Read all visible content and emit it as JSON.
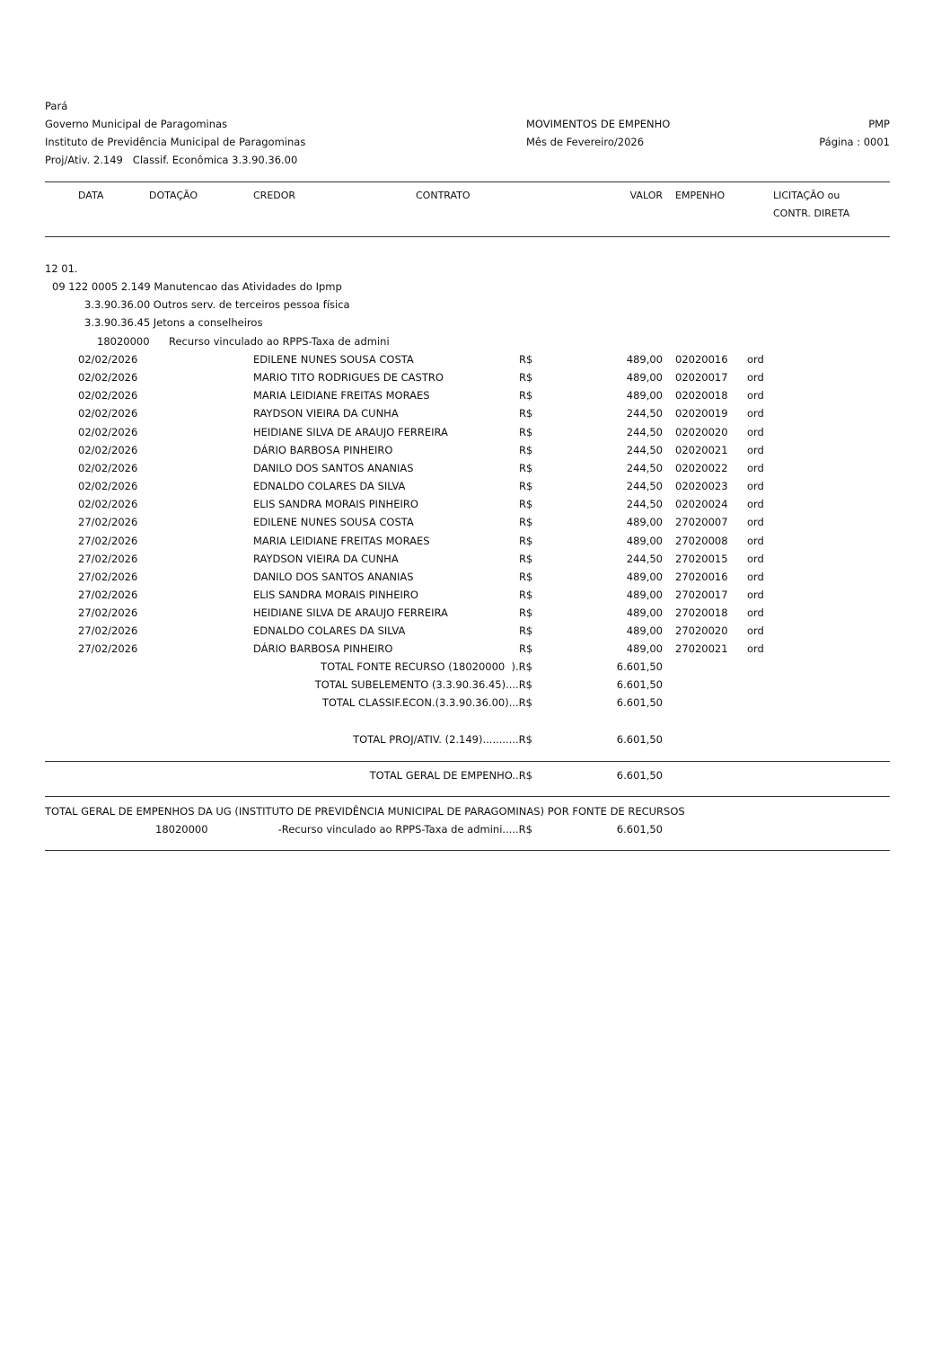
{
  "header": {
    "state": "Pará",
    "government": "Governo Municipal de Paragominas",
    "institute": "Instituto de Previdência Municipal de Paragominas",
    "proj_line": "Proj/Ativ. 2.149   Classif. Econômica 3.3.90.36.00",
    "report_title": "MOVIMENTOS DE EMPENHO",
    "month": "Mês de Fevereiro/2026",
    "org_code": "PMP",
    "page": "Página : 0001"
  },
  "columns": {
    "data": "DATA",
    "dotacao": "DOTAÇÃO",
    "credor": "CREDOR",
    "contrato": "CONTRATO",
    "valor": "VALOR",
    "empenho": "EMPENHO",
    "licitacao1": "LICITAÇÃO ou",
    "licitacao2": "CONTR. DIRETA"
  },
  "hierarchy": {
    "unit": "12 01.",
    "program": "09 122 0005 2.149 Manutencao das Atividades do Ipmp",
    "element": "3.3.90.36.00 Outros serv. de terceiros pessoa física",
    "subelement": "3.3.90.36.45 Jetons a conselheiros",
    "source_code": "18020000",
    "source_name": "Recurso vinculado ao RPPS-Taxa de admini"
  },
  "rows": [
    {
      "date": "02/02/2026",
      "credor": "EDILENE NUNES SOUSA COSTA",
      "currency": "R$",
      "valor": "489,00",
      "empenho": "02020016",
      "tipo": "ord"
    },
    {
      "date": "02/02/2026",
      "credor": "MARIO TITO RODRIGUES DE CASTRO",
      "currency": "R$",
      "valor": "489,00",
      "empenho": "02020017",
      "tipo": "ord"
    },
    {
      "date": "02/02/2026",
      "credor": "MARIA LEIDIANE FREITAS MORAES",
      "currency": "R$",
      "valor": "489,00",
      "empenho": "02020018",
      "tipo": "ord"
    },
    {
      "date": "02/02/2026",
      "credor": "RAYDSON VIEIRA DA CUNHA",
      "currency": "R$",
      "valor": "244,50",
      "empenho": "02020019",
      "tipo": "ord"
    },
    {
      "date": "02/02/2026",
      "credor": "HEIDIANE SILVA DE ARAUJO FERREIRA",
      "currency": "R$",
      "valor": "244,50",
      "empenho": "02020020",
      "tipo": "ord"
    },
    {
      "date": "02/02/2026",
      "credor": "DÁRIO BARBOSA PINHEIRO",
      "currency": "R$",
      "valor": "244,50",
      "empenho": "02020021",
      "tipo": "ord"
    },
    {
      "date": "02/02/2026",
      "credor": "DANILO DOS SANTOS ANANIAS",
      "currency": "R$",
      "valor": "244,50",
      "empenho": "02020022",
      "tipo": "ord"
    },
    {
      "date": "02/02/2026",
      "credor": "EDNALDO COLARES DA SILVA",
      "currency": "R$",
      "valor": "244,50",
      "empenho": "02020023",
      "tipo": "ord"
    },
    {
      "date": "02/02/2026",
      "credor": "ELIS SANDRA MORAIS PINHEIRO",
      "currency": "R$",
      "valor": "244,50",
      "empenho": "02020024",
      "tipo": "ord"
    },
    {
      "date": "27/02/2026",
      "credor": "EDILENE NUNES SOUSA COSTA",
      "currency": "R$",
      "valor": "489,00",
      "empenho": "27020007",
      "tipo": "ord"
    },
    {
      "date": "27/02/2026",
      "credor": "MARIA LEIDIANE FREITAS MORAES",
      "currency": "R$",
      "valor": "489,00",
      "empenho": "27020008",
      "tipo": "ord"
    },
    {
      "date": "27/02/2026",
      "credor": "RAYDSON VIEIRA DA CUNHA",
      "currency": "R$",
      "valor": "244,50",
      "empenho": "27020015",
      "tipo": "ord"
    },
    {
      "date": "27/02/2026",
      "credor": "DANILO DOS SANTOS ANANIAS",
      "currency": "R$",
      "valor": "489,00",
      "empenho": "27020016",
      "tipo": "ord"
    },
    {
      "date": "27/02/2026",
      "credor": "ELIS SANDRA MORAIS PINHEIRO",
      "currency": "R$",
      "valor": "489,00",
      "empenho": "27020017",
      "tipo": "ord"
    },
    {
      "date": "27/02/2026",
      "credor": "HEIDIANE SILVA DE ARAUJO FERREIRA",
      "currency": "R$",
      "valor": "489,00",
      "empenho": "27020018",
      "tipo": "ord"
    },
    {
      "date": "27/02/2026",
      "credor": "EDNALDO COLARES DA SILVA",
      "currency": "R$",
      "valor": "489,00",
      "empenho": "27020020",
      "tipo": "ord"
    },
    {
      "date": "27/02/2026",
      "credor": "DÁRIO BARBOSA PINHEIRO",
      "currency": "R$",
      "valor": "489,00",
      "empenho": "27020021",
      "tipo": "ord"
    }
  ],
  "totals": [
    {
      "label": "TOTAL FONTE RECURSO (18020000  ).R$",
      "value": "6.601,50"
    },
    {
      "label": "TOTAL SUBELEMENTO (3.3.90.36.45)....R$",
      "value": "6.601,50"
    },
    {
      "label": "TOTAL CLASSIF.ECON.(3.3.90.36.00)...R$",
      "value": "6.601,50"
    },
    {
      "label": "TOTAL PROJ/ATIV. (2.149)...........R$",
      "value": "6.601,50"
    }
  ],
  "grand_total": {
    "label": "TOTAL GERAL DE EMPENHO..R$",
    "value": "6.601,50"
  },
  "by_source": {
    "title": "TOTAL GERAL DE EMPENHOS DA UG (INSTITUTO DE PREVIDÊNCIA MUNICIPAL DE PARAGOMINAS) POR FONTE DE RECURSOS",
    "code": "18020000",
    "label": "-Recurso vinculado ao RPPS-Taxa de admini.....R$",
    "value": "6.601,50"
  }
}
